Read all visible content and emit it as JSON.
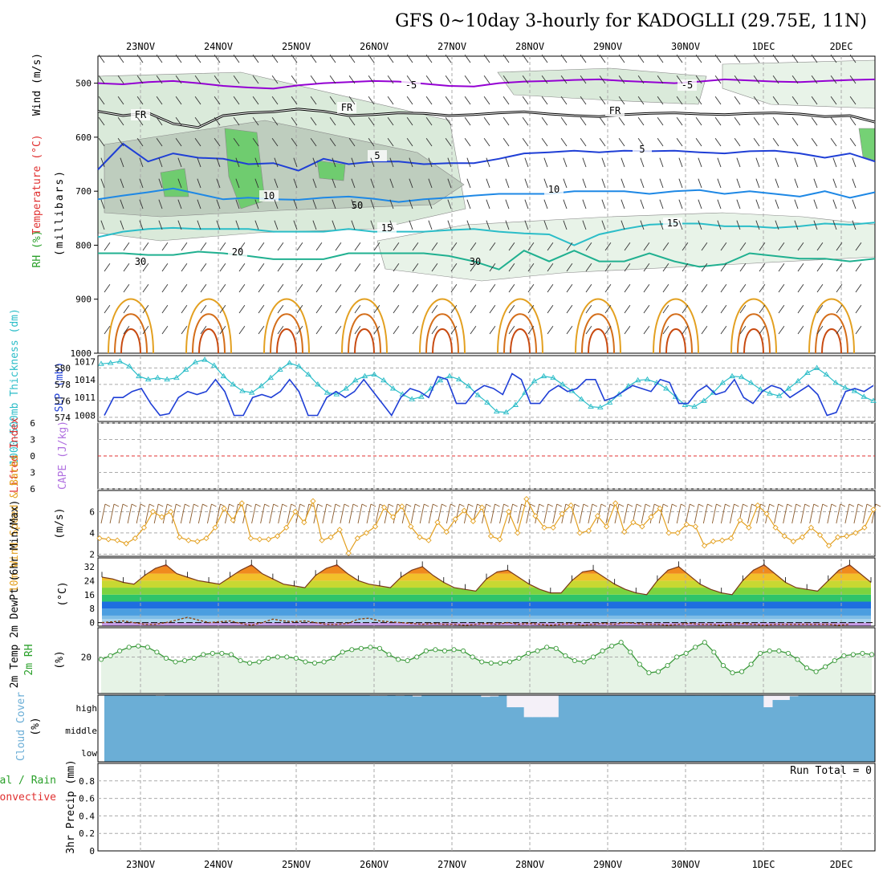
{
  "title": "GFS 0~10day 3-hourly for KADOGLLI (29.75E, 11N)",
  "dates": [
    "23NOV",
    "24NOV",
    "25NOV",
    "26NOV",
    "27NOV",
    "28NOV",
    "29NOV",
    "30NOV",
    "1DEC",
    "2DEC"
  ],
  "colors": {
    "purple": "#9400d3",
    "blue": "#1f3fd6",
    "cyan": "#2bbdc8",
    "teal": "#20b090",
    "orange": "#e3a020",
    "green": "#3a9a3a",
    "cloud": "#6baed6",
    "red": "#e03030",
    "gridline": "#999999"
  },
  "chart_data": [
    {
      "type": "contour",
      "panel": "upper-air",
      "ylabel_wind": "Wind (m/s)",
      "ylabel_temp": "Temperature (°C)",
      "ylabel_rh": "RH (%)",
      "ylabel_units": "(millibars)",
      "y_ticks": [
        500,
        600,
        700,
        800,
        900,
        1000
      ],
      "ylim": [
        1000,
        450
      ],
      "contour_labels": [
        {
          "text": "-5",
          "level": -5,
          "series": "temp"
        },
        {
          "text": "FR",
          "level": 0,
          "series": "freezing"
        },
        {
          "text": "5",
          "level": 5,
          "series": "temp"
        },
        {
          "text": "10",
          "level": 10,
          "series": "temp"
        },
        {
          "text": "15",
          "level": 15,
          "series": "temp"
        },
        {
          "text": "20",
          "level": 20,
          "series": "temp"
        },
        {
          "text": "30",
          "level": 30,
          "series": "rh"
        },
        {
          "text": "50",
          "level": 50,
          "series": "rh"
        }
      ],
      "isotherms": [
        {
          "name": "-5C",
          "mb": [
            500,
            502,
            498,
            496,
            500,
            505,
            508,
            510,
            504,
            500,
            498,
            496,
            497,
            501,
            505,
            506,
            500,
            497,
            496,
            494,
            493,
            496,
            498,
            500,
            497,
            493,
            495,
            497,
            498,
            496,
            494,
            493
          ]
        },
        {
          "name": "FR",
          "mb": [
            552,
            560,
            555,
            575,
            582,
            560,
            555,
            553,
            548,
            552,
            560,
            558,
            555,
            556,
            560,
            558,
            555,
            553,
            557,
            560,
            562,
            558,
            556,
            555,
            557,
            558,
            556,
            555,
            557,
            562,
            560,
            572
          ]
        },
        {
          "name": "5C",
          "mb": [
            660,
            612,
            645,
            630,
            638,
            640,
            650,
            648,
            662,
            640,
            650,
            645,
            645,
            650,
            648,
            648,
            640,
            630,
            628,
            625,
            628,
            625,
            626,
            625,
            628,
            630,
            626,
            625,
            630,
            638,
            630,
            645
          ]
        },
        {
          "name": "10C",
          "mb": [
            715,
            708,
            702,
            695,
            705,
            715,
            712,
            715,
            716,
            712,
            710,
            714,
            720,
            715,
            712,
            708,
            705,
            705,
            705,
            700,
            700,
            700,
            705,
            700,
            698,
            705,
            700,
            705,
            710,
            700,
            712,
            702
          ]
        },
        {
          "name": "15C",
          "mb": [
            785,
            775,
            770,
            768,
            770,
            770,
            770,
            775,
            775,
            775,
            770,
            775,
            775,
            775,
            772,
            770,
            775,
            778,
            780,
            800,
            780,
            770,
            762,
            760,
            760,
            765,
            765,
            768,
            765,
            760,
            762,
            758
          ]
        },
        {
          "name": "20C",
          "mb": [
            815,
            815,
            818,
            818,
            812,
            815,
            820,
            826,
            826,
            826,
            815,
            815,
            815,
            815,
            820,
            830,
            845,
            810,
            830,
            810,
            830,
            830,
            815,
            830,
            840,
            835,
            815,
            820,
            825,
            825,
            830,
            825
          ]
        }
      ]
    },
    {
      "type": "line",
      "panel": "sea-level-pressure-thickness",
      "ylabel_left": "1000-500mb Thickness (dm)",
      "ylabel_right": "SLP (mb)",
      "thickness_ticks": [
        574,
        576,
        578,
        580
      ],
      "slp_ticks": [
        1008,
        1011,
        1014,
        1017
      ],
      "thickness_ylim": [
        573.5,
        581.5
      ],
      "slp_ylim": [
        1007,
        1018
      ],
      "series": [
        {
          "name": "SLP",
          "axis": "right",
          "values": [
            1008,
            1011,
            1011,
            1012,
            1012.5,
            1010,
            1008,
            1008.3,
            1011,
            1012,
            1011.5,
            1012,
            1014,
            1012,
            1008,
            1008,
            1011,
            1011.5,
            1011,
            1012,
            1014,
            1012,
            1008,
            1008,
            1011,
            1012,
            1011,
            1012,
            1014,
            1012,
            1010,
            1008,
            1011,
            1012.5,
            1012,
            1011,
            1014.5,
            1014,
            1010,
            1010,
            1012,
            1013,
            1012.5,
            1011.5,
            1015,
            1014,
            1010,
            1010,
            1012,
            1013,
            1012,
            1012.5,
            1014,
            1014,
            1010.5,
            1011,
            1012,
            1013,
            1012.5,
            1012,
            1014,
            1013.5,
            1010,
            1010,
            1012,
            1013,
            1011.5,
            1012,
            1014,
            1011,
            1010,
            1012,
            1013,
            1012.5,
            1011,
            1012,
            1013,
            1011.5,
            1008,
            1008.5,
            1012,
            1012.5,
            1012,
            1013
          ]
        },
        {
          "name": "Thickness",
          "axis": "left",
          "values": [
            580.5,
            580.6,
            580.8,
            580.2,
            579,
            578.6,
            578.8,
            578.6,
            578.8,
            579.8,
            580.7,
            581,
            580.3,
            579,
            578,
            577.2,
            577,
            577.8,
            578.8,
            579.8,
            580.6,
            580.2,
            579.2,
            578,
            577,
            576.8,
            577.5,
            578.5,
            579,
            579.2,
            578.5,
            577.5,
            576.8,
            576.2,
            576.5,
            577.5,
            578.5,
            579,
            578.6,
            577.8,
            576.7,
            575.8,
            574.7,
            574.6,
            575.5,
            577,
            578.4,
            579,
            578.8,
            578,
            577.2,
            576.2,
            575.3,
            575.2,
            575.8,
            576.8,
            577.8,
            578.5,
            578.6,
            578.2,
            577.5,
            576.5,
            575.5,
            575.3,
            576,
            577,
            578.2,
            579,
            578.9,
            578.2,
            577.4,
            576.9,
            576.6,
            577.5,
            578.4,
            579.4,
            580,
            579.2,
            578.2,
            577.6,
            577.2,
            576.5,
            576
          ]
        }
      ]
    },
    {
      "type": "line",
      "panel": "stability",
      "ylabel_left": "Lifted Index",
      "ylabel_right": "CAPE (J/kg)",
      "y_ticks": [
        -6,
        -3,
        0,
        3,
        6
      ],
      "ylim": [
        -6,
        6
      ],
      "tick_labels": [
        "6",
        "3",
        "0",
        "3",
        "6"
      ],
      "series": [
        {
          "name": "Lifted Index",
          "values": []
        },
        {
          "name": "CAPE",
          "values": []
        }
      ]
    },
    {
      "type": "line",
      "panel": "10m-wind",
      "ylabel": "10m Wind Speed & Barbs",
      "ylabel_units": "(m/s)",
      "y_ticks": [
        2,
        4,
        6
      ],
      "ylim": [
        1.8,
        8
      ],
      "series": [
        {
          "name": "10m Wind Speed",
          "values": [
            3.5,
            3.4,
            3.3,
            3,
            3.5,
            4.5,
            6,
            5.5,
            6,
            3.6,
            3.3,
            3.2,
            3.5,
            4.5,
            6.3,
            5.2,
            6.8,
            3.5,
            3.4,
            3.4,
            3.7,
            4.5,
            6,
            5,
            7,
            3.3,
            3.6,
            4.3,
            2.1,
            3.5,
            4,
            4.6,
            6.4,
            5.5,
            6.5,
            4.6,
            3.6,
            3.3,
            5,
            4.1,
            5.3,
            6.1,
            5.1,
            6.4,
            3.7,
            3.4,
            6,
            4,
            7.2,
            5.6,
            4.5,
            4.5,
            5.8,
            6.6,
            4,
            4.2,
            5.6,
            4.6,
            6.8,
            4.1,
            5,
            4.6,
            5.5,
            6.3,
            4,
            4,
            4.8,
            4.6,
            2.8,
            3.2,
            3.3,
            3.5,
            5.2,
            4.5,
            6.6,
            5.8,
            4.5,
            3.7,
            3.2,
            3.6,
            4.5,
            3.8,
            2.8,
            3.6,
            3.7,
            4,
            4.5,
            6.2
          ]
        }
      ]
    },
    {
      "type": "area",
      "panel": "2m-temperature",
      "ylabel": "2m Temp 2m DewPt (6hr Min/Max)",
      "ylabel_units": "(°C)",
      "y_ticks": [
        0,
        8,
        16,
        24,
        32
      ],
      "ylim": [
        -2,
        37
      ],
      "series": [
        {
          "name": "2m Temp",
          "values": [
            26,
            25,
            23,
            22,
            27,
            31,
            33,
            28,
            26,
            24,
            23,
            22,
            26,
            30,
            33,
            28,
            25,
            22,
            21,
            20,
            27,
            31,
            33,
            28,
            24,
            22,
            21,
            20,
            26,
            30,
            32,
            27,
            23,
            20,
            19,
            18,
            25,
            29,
            30,
            26,
            22,
            19,
            17,
            17,
            24,
            29,
            30,
            26,
            22,
            19,
            17,
            16,
            24,
            30,
            32,
            27,
            22,
            19,
            17,
            16,
            24,
            30,
            33,
            28,
            23,
            20,
            19,
            18,
            24,
            30,
            33,
            28,
            23
          ]
        },
        {
          "name": "2m DewPt",
          "values": [
            0,
            0.5,
            1,
            0,
            -1,
            -1,
            0,
            1.5,
            3,
            1.5,
            0,
            0.5,
            1,
            -0.5,
            -1.5,
            0,
            2,
            1,
            0.5,
            1,
            0,
            -1,
            -1,
            -0.5,
            2,
            2.5,
            1,
            0.5,
            0,
            -0.5,
            -1,
            -0.5,
            -1,
            -1,
            -1.5,
            -1,
            -0.5,
            -1,
            0,
            -1,
            -0.5,
            -1,
            -1.5,
            -1,
            -0.5,
            -1.5,
            -1,
            -0.5,
            -1,
            0,
            -0.5,
            -1,
            -1,
            -1.5,
            -1,
            -0.5,
            -1,
            -1,
            -1.5,
            -1,
            -0.5,
            -1,
            -1.5,
            -1,
            -1,
            -1,
            -1,
            -1,
            -1,
            -1.5,
            -1
          ]
        }
      ]
    },
    {
      "type": "area",
      "panel": "2m-relative-humidity",
      "ylabel": "2m RH",
      "ylabel_units": "(%)",
      "y_ticks": [
        20
      ],
      "ylim": [
        5,
        32
      ],
      "series": [
        {
          "name": "2m RH",
          "values": [
            19,
            20.5,
            22.5,
            24,
            24.5,
            24,
            22,
            19.5,
            18,
            18.5,
            19.5,
            21,
            21.5,
            21.5,
            21,
            18.5,
            17.5,
            18,
            19.5,
            20,
            20,
            19.5,
            18,
            17.5,
            18,
            19.5,
            22,
            23,
            23.5,
            24,
            23.5,
            21,
            19,
            18.5,
            20,
            22.5,
            23,
            22.5,
            23,
            22.5,
            20,
            18,
            17.5,
            17.5,
            18,
            19.5,
            21.5,
            22.5,
            24,
            23.5,
            20.5,
            18.5,
            18,
            20,
            22.5,
            24.5,
            26,
            22,
            17,
            13.5,
            14,
            16.5,
            20,
            21.5,
            24,
            26,
            22,
            16.5,
            13.5,
            14,
            17,
            21.5,
            22.5,
            22.5,
            21.5,
            19,
            15.5,
            14,
            16,
            18.5,
            20.5,
            21,
            21.5,
            21
          ]
        }
      ]
    },
    {
      "type": "bar",
      "panel": "cloud-cover",
      "ylabel": "Cloud Cover",
      "ylabel_units": "(%)",
      "levels": [
        "high",
        "middle",
        "low"
      ],
      "series": [
        {
          "name": "high cloud",
          "values": [
            0,
            2,
            0,
            0,
            0,
            0,
            3,
            0,
            0,
            0,
            0,
            0,
            0,
            0,
            0,
            0,
            0,
            0,
            0,
            0,
            0,
            0,
            0,
            0,
            0,
            0,
            0,
            0,
            0,
            0,
            0,
            3,
            3,
            0,
            3,
            0,
            6,
            0,
            0,
            0,
            0,
            0,
            0,
            0,
            8,
            6,
            0,
            55,
            55,
            100,
            100,
            100,
            100,
            0,
            0,
            0,
            0,
            0,
            0,
            0,
            0,
            0,
            0,
            0,
            0,
            0,
            2,
            2,
            0,
            2,
            2,
            2,
            0,
            2,
            2,
            2,
            2,
            55,
            22,
            22,
            5,
            2,
            0,
            0,
            0,
            0,
            0,
            0,
            0,
            0
          ]
        }
      ]
    },
    {
      "type": "bar",
      "panel": "precipitation",
      "ylabel": "3hr Precip (mm)",
      "legend_total": "Total / Rain",
      "legend_conv": "Convective",
      "run_total": "Run Total = 0",
      "y_ticks": [
        0,
        0.2,
        0.4,
        0.6,
        0.8
      ],
      "ylim": [
        0,
        1
      ],
      "series": [
        {
          "name": "Total",
          "values": []
        },
        {
          "name": "Convective",
          "values": []
        }
      ]
    }
  ]
}
